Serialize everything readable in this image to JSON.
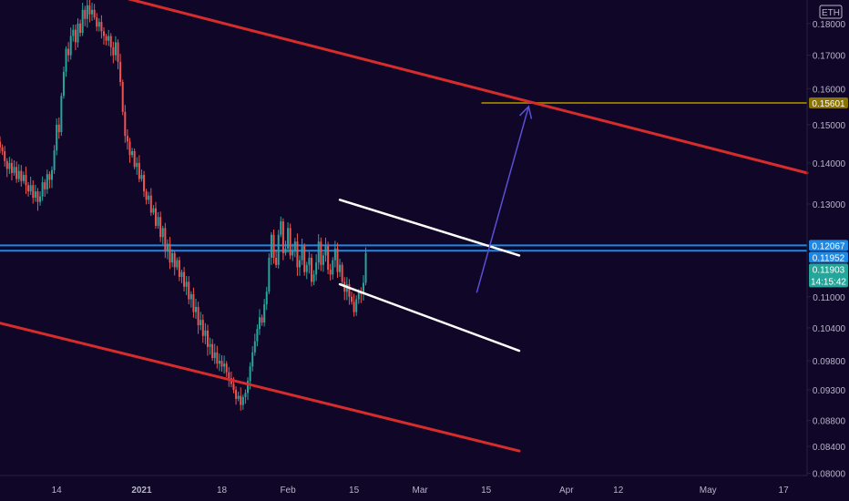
{
  "chart_data": {
    "type": "candlestick",
    "symbol_badge": "ETH",
    "colors": {
      "background": "#0f0628",
      "up": "#26a69a",
      "down": "#ef5350",
      "channel": "#d62c2c",
      "flag": "#ffffff",
      "horizontal": "#1e88e5",
      "target": "#8a7300",
      "arrow": "#5b4fd6",
      "axis_text": "#b8b4c8"
    },
    "y_axis": {
      "scale": "log",
      "range": [
        0.0797,
        0.1878
      ],
      "ticks": [
        "0.18000",
        "0.17000",
        "0.16000",
        "0.15000",
        "0.14000",
        "0.13000",
        "0.11000",
        "0.10400",
        "0.09800",
        "0.09300",
        "0.08800",
        "0.08400",
        "0.08000"
      ]
    },
    "x_axis": {
      "range": [
        "2020-12-02",
        "2021-05-22"
      ],
      "ticks": [
        {
          "label": "14",
          "date": "2020-12-14"
        },
        {
          "label": "2021",
          "date": "2021-01-01"
        },
        {
          "label": "18",
          "date": "2021-01-18"
        },
        {
          "label": "Feb",
          "date": "2021-02-01"
        },
        {
          "label": "15",
          "date": "2021-02-15"
        },
        {
          "label": "Mar",
          "date": "2021-03-01"
        },
        {
          "label": "15",
          "date": "2021-03-15"
        },
        {
          "label": "Apr",
          "date": "2021-04-01"
        },
        {
          "label": "12",
          "date": "2021-04-12"
        },
        {
          "label": "May",
          "date": "2021-05-01"
        },
        {
          "label": "17",
          "date": "2021-05-17"
        }
      ]
    },
    "candles": {
      "start_date": "2020-12-02",
      "interval": "12h",
      "close": [
        0.144,
        0.143,
        0.1405,
        0.1385,
        0.14,
        0.1375,
        0.139,
        0.136,
        0.138,
        0.1355,
        0.137,
        0.1345,
        0.133,
        0.1345,
        0.1315,
        0.133,
        0.1305,
        0.1318,
        0.1352,
        0.1335,
        0.1372,
        0.1358,
        0.1382,
        0.1432,
        0.15,
        0.148,
        0.158,
        0.165,
        0.172,
        0.17,
        0.176,
        0.178,
        0.174,
        0.18,
        0.177,
        0.1845,
        0.1815,
        0.186,
        0.183,
        0.1845,
        0.182,
        0.179,
        0.1805,
        0.1775,
        0.176,
        0.1745,
        0.176,
        0.1725,
        0.17,
        0.174,
        0.168,
        0.162,
        0.1535,
        0.147,
        0.1455,
        0.142,
        0.143,
        0.139,
        0.14,
        0.136,
        0.137,
        0.133,
        0.131,
        0.132,
        0.128,
        0.129,
        0.125,
        0.127,
        0.1225,
        0.1245,
        0.1195,
        0.121,
        0.117,
        0.119,
        0.116,
        0.1175,
        0.114,
        0.115,
        0.112,
        0.113,
        0.1095,
        0.1105,
        0.107,
        0.108,
        0.1045,
        0.1055,
        0.1025,
        0.1035,
        0.1005,
        0.101,
        0.0985,
        0.0995,
        0.0975,
        0.098,
        0.097,
        0.0975,
        0.096,
        0.095,
        0.094,
        0.093,
        0.0915,
        0.092,
        0.0905,
        0.0918,
        0.0925,
        0.0945,
        0.097,
        0.0995,
        0.1015,
        0.1038,
        0.106,
        0.105,
        0.1085,
        0.111,
        0.118,
        0.123,
        0.118,
        0.1165,
        0.123,
        0.126,
        0.119,
        0.12,
        0.1245,
        0.1185,
        0.1195,
        0.1215,
        0.116,
        0.1175,
        0.1205,
        0.115,
        0.1165,
        0.118,
        0.113,
        0.1145,
        0.117,
        0.1215,
        0.1165,
        0.1185,
        0.1205,
        0.1155,
        0.1145,
        0.1175,
        0.12,
        0.115,
        0.1165,
        0.113,
        0.111,
        0.1125,
        0.11,
        0.109,
        0.107,
        0.1095,
        0.111,
        0.1105,
        0.1128,
        0.119
      ],
      "last_price": 0.11903
    },
    "price_labels": [
      {
        "value": 0.15601,
        "text": "0.15601",
        "color": "#8a7300"
      },
      {
        "value": 0.12067,
        "text": "0.12067",
        "color": "#1e88e5"
      },
      {
        "value": 0.11952,
        "text": "0.11952",
        "color": "#1e88e5"
      },
      {
        "value": 0.11903,
        "text": "0.11903",
        "color": "#26a69a",
        "extra": "14:15:42"
      }
    ],
    "horizontal_lines": [
      0.12067,
      0.11952
    ],
    "target_line": {
      "value": 0.15601,
      "from": "2021-03-14",
      "to": "2021-05-22"
    },
    "trendlines": [
      {
        "role": "channel",
        "from": {
          "date": "2020-12-26",
          "price": 0.1895
        },
        "to": {
          "date": "2021-05-22",
          "price": 0.1375
        }
      },
      {
        "role": "channel",
        "from": {
          "date": "2020-12-02",
          "price": 0.1049
        },
        "to": {
          "date": "2021-03-22",
          "price": 0.0833
        }
      },
      {
        "role": "flag",
        "from": {
          "date": "2021-02-12",
          "price": 0.131
        },
        "to": {
          "date": "2021-03-22",
          "price": 0.1185
        }
      },
      {
        "role": "flag",
        "from": {
          "date": "2021-02-12",
          "price": 0.1125
        },
        "to": {
          "date": "2021-03-22",
          "price": 0.0998
        }
      }
    ],
    "arrow": {
      "from": {
        "date": "2021-03-13",
        "price": 0.1108
      },
      "to": {
        "date": "2021-03-24",
        "price": 0.155
      }
    },
    "title": "",
    "xlabel": "",
    "ylabel": "",
    "grid": false,
    "legend": "none"
  }
}
